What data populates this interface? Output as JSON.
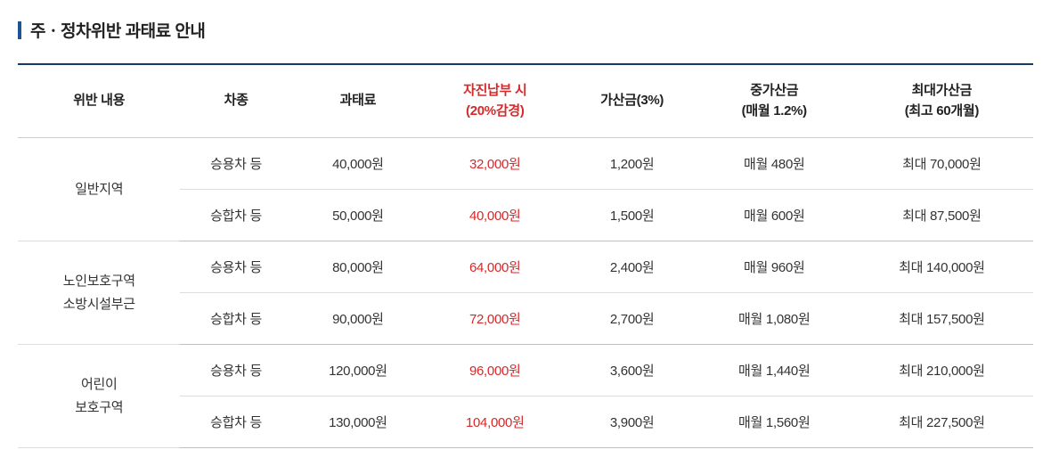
{
  "title": "주ㆍ정차위반 과태료 안내",
  "columns": [
    {
      "label": "위반 내용",
      "sub": ""
    },
    {
      "label": "차종",
      "sub": ""
    },
    {
      "label": "과태료",
      "sub": ""
    },
    {
      "label": "자진납부 시",
      "sub": "(20%감경)",
      "highlight": true
    },
    {
      "label": "가산금(3%)",
      "sub": ""
    },
    {
      "label": "중가산금",
      "sub": "(매월 1.2%)"
    },
    {
      "label": "최대가산금",
      "sub": "(최고 60개월)"
    }
  ],
  "groups": [
    {
      "label": "일반지역",
      "rows": [
        {
          "vehicle": "승용차 등",
          "fine": "40,000원",
          "voluntary": "32,000원",
          "surcharge": "1,200원",
          "monthly": "매월 480원",
          "max": "최대 70,000원"
        },
        {
          "vehicle": "승합차 등",
          "fine": "50,000원",
          "voluntary": "40,000원",
          "surcharge": "1,500원",
          "monthly": "매월 600원",
          "max": "최대 87,500원"
        }
      ]
    },
    {
      "label": "노인보호구역\n소방시설부근",
      "rows": [
        {
          "vehicle": "승용차 등",
          "fine": "80,000원",
          "voluntary": "64,000원",
          "surcharge": "2,400원",
          "monthly": "매월 960원",
          "max": "최대 140,000원"
        },
        {
          "vehicle": "승합차 등",
          "fine": "90,000원",
          "voluntary": "72,000원",
          "surcharge": "2,700원",
          "monthly": "매월 1,080원",
          "max": "최대 157,500원"
        }
      ]
    },
    {
      "label": "어린이\n보호구역",
      "rows": [
        {
          "vehicle": "승용차 등",
          "fine": "120,000원",
          "voluntary": "96,000원",
          "surcharge": "3,600원",
          "monthly": "매월 1,440원",
          "max": "최대 210,000원"
        },
        {
          "vehicle": "승합차 등",
          "fine": "130,000원",
          "voluntary": "104,000원",
          "surcharge": "3,900원",
          "monthly": "매월 1,560원",
          "max": "최대 227,500원"
        }
      ]
    }
  ],
  "col_widths": [
    "16%",
    "11%",
    "13%",
    "14%",
    "13%",
    "15%",
    "18%"
  ],
  "colors": {
    "accent": "#1e5494",
    "border_top": "#123b6b",
    "highlight": "#d8282a",
    "row_border": "#dddddd",
    "group_border": "#bfbfbf"
  }
}
